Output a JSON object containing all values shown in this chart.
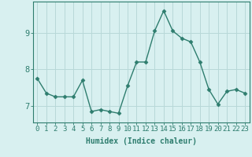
{
  "x": [
    0,
    1,
    2,
    3,
    4,
    5,
    6,
    7,
    8,
    9,
    10,
    11,
    12,
    13,
    14,
    15,
    16,
    17,
    18,
    19,
    20,
    21,
    22,
    23
  ],
  "y": [
    7.75,
    7.35,
    7.25,
    7.25,
    7.25,
    7.7,
    6.85,
    6.9,
    6.85,
    6.8,
    7.55,
    8.2,
    8.2,
    9.05,
    9.6,
    9.05,
    8.85,
    8.75,
    8.2,
    7.45,
    7.05,
    7.4,
    7.45,
    7.35
  ],
  "line_color": "#2e7d6e",
  "marker": "D",
  "marker_size": 2.5,
  "bg_color": "#d8f0f0",
  "grid_color": "#b8d8d8",
  "axis_color": "#2e7d6e",
  "xlabel": "Humidex (Indice chaleur)",
  "xlim": [
    -0.5,
    23.5
  ],
  "ylim": [
    6.55,
    9.85
  ],
  "yticks": [
    7,
    8,
    9
  ],
  "xticks": [
    0,
    1,
    2,
    3,
    4,
    5,
    6,
    7,
    8,
    9,
    10,
    11,
    12,
    13,
    14,
    15,
    16,
    17,
    18,
    19,
    20,
    21,
    22,
    23
  ],
  "xlabel_fontsize": 7,
  "tick_fontsize": 6.5,
  "line_width": 1.0
}
